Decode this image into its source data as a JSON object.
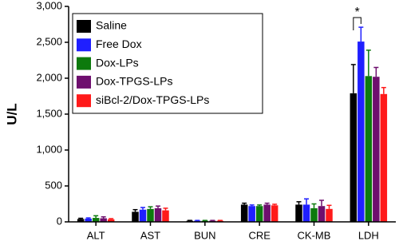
{
  "chart_data": {
    "type": "bar",
    "y_label": "U/L",
    "categories": [
      "ALT",
      "AST",
      "BUN",
      "CRE",
      "CK-MB",
      "LDH"
    ],
    "series": [
      {
        "name": "Saline",
        "color": "#000000",
        "values": [
          40,
          140,
          15,
          240,
          240,
          1790
        ],
        "errors": [
          10,
          30,
          5,
          20,
          40,
          400
        ]
      },
      {
        "name": "Free Dox",
        "color": "#1f1fff",
        "values": [
          45,
          170,
          15,
          220,
          240,
          2510
        ],
        "errors": [
          10,
          30,
          5,
          15,
          80,
          200
        ]
      },
      {
        "name": "Dox-LPs",
        "color": "#0d7a0d",
        "values": [
          55,
          180,
          15,
          220,
          190,
          2030
        ],
        "errors": [
          30,
          30,
          5,
          15,
          60,
          360
        ]
      },
      {
        "name": "Dox-TPGS-LPs",
        "color": "#6e0f6e",
        "values": [
          50,
          190,
          15,
          240,
          220,
          2020
        ],
        "errors": [
          20,
          30,
          5,
          20,
          80,
          130
        ]
      },
      {
        "name": "siBcl-2/Dox-TPGS-LPs",
        "color": "#ff1a1a",
        "values": [
          35,
          160,
          15,
          230,
          180,
          1780
        ],
        "errors": [
          10,
          30,
          5,
          15,
          50,
          90
        ]
      }
    ],
    "ylim": [
      0,
      3000
    ],
    "yticks": [
      0,
      500,
      {
        "value": 1000,
        "label": "1,000"
      },
      {
        "value": 1500,
        "label": "1,500"
      },
      {
        "value": 2000,
        "label": "2,000"
      },
      {
        "value": 2500,
        "label": "2,500"
      },
      {
        "value": 3000,
        "label": "3,000"
      }
    ],
    "annotations": [
      {
        "text": "*"
      }
    ],
    "legend": "upper left"
  }
}
